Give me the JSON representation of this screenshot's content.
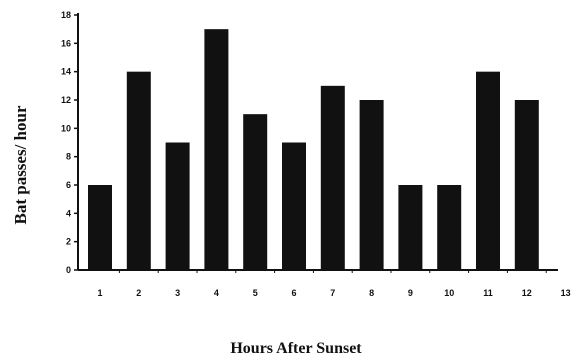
{
  "chart_data": {
    "type": "bar",
    "xlabel": "Hours After Sunset",
    "ylabel": "Bat passes/ hour",
    "ylim": [
      0,
      18
    ],
    "yticks": [
      0,
      2,
      4,
      6,
      8,
      10,
      12,
      14,
      16,
      18
    ],
    "categories": [
      "1",
      "2",
      "3",
      "4",
      "5",
      "6",
      "7",
      "8",
      "9",
      "10",
      "11",
      "12",
      "13"
    ],
    "values": [
      6,
      14,
      9,
      17,
      11,
      9,
      13,
      12,
      6,
      6,
      14,
      12,
      null
    ],
    "bar_color": "#111111",
    "grid": false,
    "legend": "none"
  }
}
